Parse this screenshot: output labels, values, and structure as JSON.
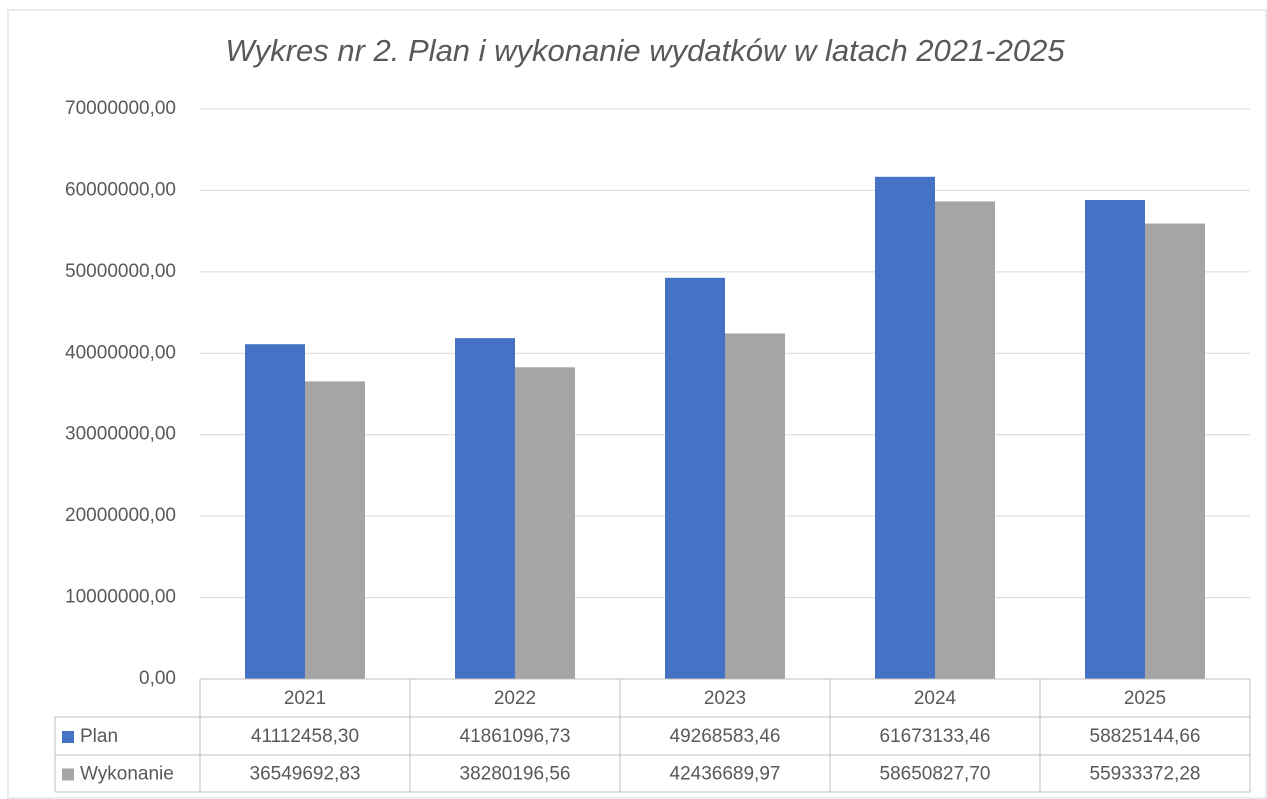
{
  "chart_data": {
    "type": "bar",
    "title": "Wykres nr 2. Plan i wykonanie wydatków w latach 2021-2025",
    "categories": [
      "2021",
      "2022",
      "2023",
      "2024",
      "2025"
    ],
    "series": [
      {
        "name": "Plan",
        "color": "#4472c4",
        "values": [
          41112458.3,
          41861096.73,
          49268583.46,
          61673133.46,
          58825144.66
        ],
        "value_labels": [
          "41112458,30",
          "41861096,73",
          "49268583,46",
          "61673133,46",
          "58825144,66"
        ]
      },
      {
        "name": "Wykonanie",
        "color": "#a5a5a5",
        "values": [
          36549692.83,
          38280196.56,
          42436689.97,
          58650827.7,
          55933372.28
        ],
        "value_labels": [
          "36549692,83",
          "38280196,56",
          "42436689,97",
          "58650827,70",
          "55933372,28"
        ]
      }
    ],
    "ylim": [
      0,
      70000000
    ],
    "yticks": [
      {
        "value": 0,
        "label": "0,00"
      },
      {
        "value": 10000000,
        "label": "10000000,00"
      },
      {
        "value": 20000000,
        "label": "20000000,00"
      },
      {
        "value": 30000000,
        "label": "30000000,00"
      },
      {
        "value": 40000000,
        "label": "40000000,00"
      },
      {
        "value": 50000000,
        "label": "50000000,00"
      },
      {
        "value": 60000000,
        "label": "60000000,00"
      },
      {
        "value": 70000000,
        "label": "70000000,00"
      }
    ],
    "grid": true
  }
}
